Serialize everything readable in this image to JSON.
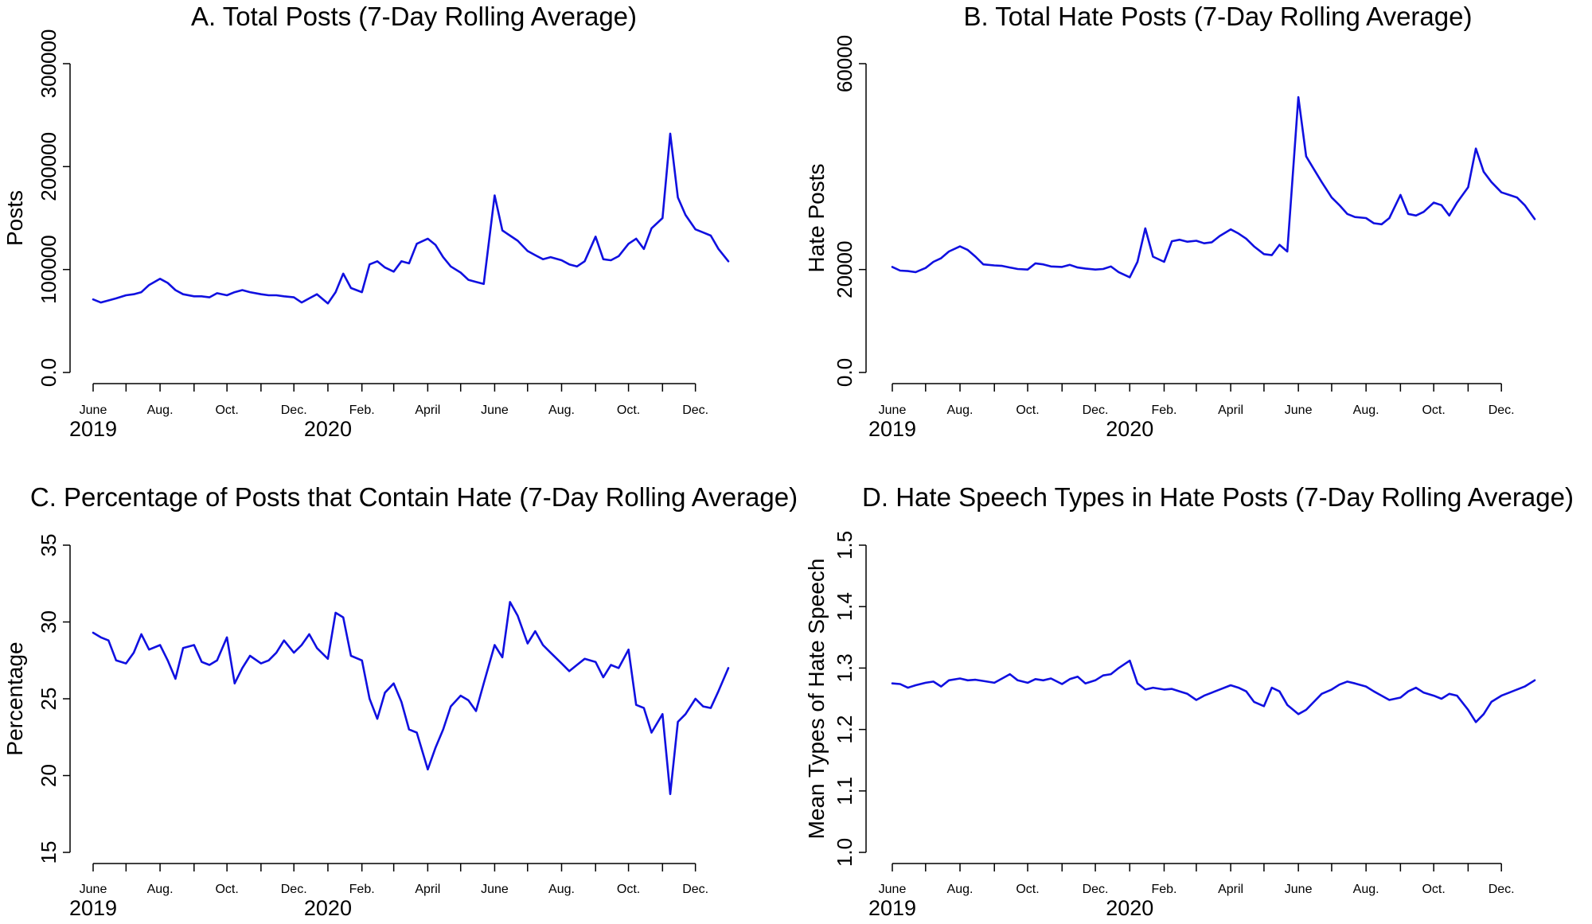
{
  "chart_data": [
    {
      "type": "line",
      "title": "A. Total Posts (7-Day Rolling Average)",
      "xlabel": "",
      "ylabel": "Posts",
      "ylim": [
        0,
        300000
      ],
      "yticks": [
        0,
        100000,
        200000,
        300000
      ],
      "xlim": [
        "2019-06-01",
        "2020-12-31"
      ],
      "x_ticks": [
        {
          "date": "2019-06-01",
          "label": "June"
        },
        {
          "date": "2019-07-01",
          "label": ""
        },
        {
          "date": "2019-08-01",
          "label": "Aug."
        },
        {
          "date": "2019-09-01",
          "label": ""
        },
        {
          "date": "2019-10-01",
          "label": "Oct."
        },
        {
          "date": "2019-11-01",
          "label": ""
        },
        {
          "date": "2019-12-01",
          "label": "Dec."
        },
        {
          "date": "2020-01-01",
          "label": ""
        },
        {
          "date": "2020-02-01",
          "label": "Feb."
        },
        {
          "date": "2020-03-01",
          "label": ""
        },
        {
          "date": "2020-04-01",
          "label": "April"
        },
        {
          "date": "2020-05-01",
          "label": ""
        },
        {
          "date": "2020-06-01",
          "label": "June"
        },
        {
          "date": "2020-07-01",
          "label": ""
        },
        {
          "date": "2020-08-01",
          "label": "Aug."
        },
        {
          "date": "2020-09-01",
          "label": ""
        },
        {
          "date": "2020-10-01",
          "label": "Oct."
        },
        {
          "date": "2020-11-01",
          "label": ""
        },
        {
          "date": "2020-12-01",
          "label": "Dec."
        }
      ],
      "year_labels": [
        {
          "date": "2019-06-01",
          "label": "2019"
        },
        {
          "date": "2020-01-01",
          "label": "2020"
        }
      ],
      "grid": false,
      "legend": "none",
      "color": "#1010e0",
      "x": [
        "2019-06-01",
        "2019-06-08",
        "2019-06-15",
        "2019-06-22",
        "2019-07-01",
        "2019-07-08",
        "2019-07-15",
        "2019-07-22",
        "2019-08-01",
        "2019-08-08",
        "2019-08-15",
        "2019-08-22",
        "2019-09-01",
        "2019-09-08",
        "2019-09-15",
        "2019-09-22",
        "2019-10-01",
        "2019-10-08",
        "2019-10-15",
        "2019-10-22",
        "2019-11-01",
        "2019-11-08",
        "2019-11-15",
        "2019-11-22",
        "2019-12-01",
        "2019-12-08",
        "2019-12-15",
        "2019-12-22",
        "2020-01-01",
        "2020-01-08",
        "2020-01-15",
        "2020-01-22",
        "2020-02-01",
        "2020-02-08",
        "2020-02-15",
        "2020-02-22",
        "2020-03-01",
        "2020-03-08",
        "2020-03-15",
        "2020-03-22",
        "2020-04-01",
        "2020-04-08",
        "2020-04-15",
        "2020-04-22",
        "2020-05-01",
        "2020-05-08",
        "2020-05-15",
        "2020-05-22",
        "2020-06-01",
        "2020-06-08",
        "2020-06-15",
        "2020-06-22",
        "2020-07-01",
        "2020-07-08",
        "2020-07-15",
        "2020-07-22",
        "2020-08-01",
        "2020-08-08",
        "2020-08-15",
        "2020-08-22",
        "2020-09-01",
        "2020-09-08",
        "2020-09-15",
        "2020-09-22",
        "2020-10-01",
        "2020-10-08",
        "2020-10-15",
        "2020-10-22",
        "2020-11-01",
        "2020-11-08",
        "2020-11-15",
        "2020-11-22",
        "2020-12-01",
        "2020-12-08",
        "2020-12-15",
        "2020-12-22",
        "2020-12-31"
      ],
      "values": [
        71000,
        68000,
        70000,
        72000,
        75000,
        76000,
        78000,
        85000,
        91000,
        87000,
        80000,
        76000,
        74000,
        74000,
        73000,
        77000,
        75000,
        78000,
        80000,
        78000,
        76000,
        75000,
        75000,
        74000,
        73000,
        68000,
        72000,
        76000,
        67000,
        78000,
        96000,
        82000,
        78000,
        105000,
        108000,
        102000,
        98000,
        108000,
        106000,
        125000,
        130000,
        124000,
        112000,
        103000,
        97000,
        90000,
        88000,
        86000,
        172000,
        138000,
        133000,
        128000,
        118000,
        114000,
        110000,
        112000,
        109000,
        105000,
        103000,
        108000,
        132000,
        110000,
        109000,
        113000,
        125000,
        130000,
        120000,
        140000,
        150000,
        232000,
        170000,
        153000,
        139000,
        136000,
        133000,
        120000,
        108000
      ]
    },
    {
      "type": "line",
      "title": "B. Total Hate Posts (7-Day Rolling Average)",
      "xlabel": "",
      "ylabel": "Hate Posts",
      "ylim": [
        0,
        60000
      ],
      "yticks": [
        0,
        20000,
        60000
      ],
      "xlim": [
        "2019-06-01",
        "2020-12-31"
      ],
      "x": [
        "2019-06-01",
        "2019-06-08",
        "2019-06-15",
        "2019-06-22",
        "2019-07-01",
        "2019-07-08",
        "2019-07-15",
        "2019-07-22",
        "2019-08-01",
        "2019-08-08",
        "2019-08-15",
        "2019-08-22",
        "2019-09-01",
        "2019-09-08",
        "2019-09-15",
        "2019-09-22",
        "2019-10-01",
        "2019-10-08",
        "2019-10-15",
        "2019-10-22",
        "2019-11-01",
        "2019-11-08",
        "2019-11-15",
        "2019-11-22",
        "2019-12-01",
        "2019-12-08",
        "2019-12-15",
        "2019-12-22",
        "2020-01-01",
        "2020-01-08",
        "2020-01-15",
        "2020-01-22",
        "2020-02-01",
        "2020-02-08",
        "2020-02-15",
        "2020-02-22",
        "2020-03-01",
        "2020-03-08",
        "2020-03-15",
        "2020-03-22",
        "2020-04-01",
        "2020-04-08",
        "2020-04-15",
        "2020-04-22",
        "2020-05-01",
        "2020-05-08",
        "2020-05-15",
        "2020-05-22",
        "2020-06-01",
        "2020-06-08",
        "2020-06-15",
        "2020-06-22",
        "2020-07-01",
        "2020-07-08",
        "2020-07-15",
        "2020-07-22",
        "2020-08-01",
        "2020-08-08",
        "2020-08-15",
        "2020-08-22",
        "2020-09-01",
        "2020-09-08",
        "2020-09-15",
        "2020-09-22",
        "2020-10-01",
        "2020-10-08",
        "2020-10-15",
        "2020-10-22",
        "2020-11-01",
        "2020-11-08",
        "2020-11-15",
        "2020-11-22",
        "2020-12-01",
        "2020-12-08",
        "2020-12-15",
        "2020-12-22",
        "2020-12-31"
      ],
      "values": [
        20500,
        19800,
        19700,
        19500,
        20300,
        21500,
        22200,
        23500,
        24500,
        23800,
        22500,
        21000,
        20800,
        20700,
        20400,
        20100,
        20000,
        21200,
        21000,
        20600,
        20500,
        20900,
        20400,
        20200,
        20000,
        20100,
        20600,
        19500,
        18500,
        21500,
        28000,
        22500,
        21500,
        25500,
        25800,
        25400,
        25600,
        25100,
        25300,
        26500,
        27800,
        27000,
        26000,
        24500,
        23000,
        22800,
        24800,
        23500,
        53500,
        42000,
        39500,
        37000,
        34000,
        32500,
        30800,
        30200,
        30000,
        29000,
        28800,
        30000,
        34500,
        30800,
        30500,
        31200,
        33000,
        32500,
        30500,
        33000,
        36000,
        43500,
        39000,
        37000,
        35000,
        34500,
        34000,
        32500,
        29800
      ]
    },
    {
      "type": "line",
      "title": "C. Percentage of Posts that Contain Hate (7-Day Rolling Average)",
      "xlabel": "",
      "ylabel": "Percentage",
      "ylim": [
        15,
        35
      ],
      "yticks": [
        15,
        20,
        25,
        30,
        35
      ],
      "xlim": [
        "2019-06-01",
        "2020-12-31"
      ],
      "x": [
        "2019-06-01",
        "2019-06-08",
        "2019-06-15",
        "2019-06-22",
        "2019-07-01",
        "2019-07-08",
        "2019-07-15",
        "2019-07-22",
        "2019-08-01",
        "2019-08-08",
        "2019-08-15",
        "2019-08-22",
        "2019-09-01",
        "2019-09-08",
        "2019-09-15",
        "2019-09-22",
        "2019-10-01",
        "2019-10-08",
        "2019-10-15",
        "2019-10-22",
        "2019-11-01",
        "2019-11-08",
        "2019-11-15",
        "2019-11-22",
        "2019-12-01",
        "2019-12-08",
        "2019-12-15",
        "2019-12-22",
        "2020-01-01",
        "2020-01-08",
        "2020-01-15",
        "2020-01-22",
        "2020-02-01",
        "2020-02-08",
        "2020-02-15",
        "2020-02-22",
        "2020-03-01",
        "2020-03-08",
        "2020-03-15",
        "2020-03-22",
        "2020-04-01",
        "2020-04-08",
        "2020-04-15",
        "2020-04-22",
        "2020-05-01",
        "2020-05-08",
        "2020-05-15",
        "2020-05-22",
        "2020-06-01",
        "2020-06-08",
        "2020-06-15",
        "2020-06-22",
        "2020-07-01",
        "2020-07-08",
        "2020-07-15",
        "2020-07-22",
        "2020-08-01",
        "2020-08-08",
        "2020-08-15",
        "2020-08-22",
        "2020-09-01",
        "2020-09-08",
        "2020-09-15",
        "2020-09-22",
        "2020-10-01",
        "2020-10-08",
        "2020-10-15",
        "2020-10-22",
        "2020-11-01",
        "2020-11-08",
        "2020-11-15",
        "2020-11-22",
        "2020-12-01",
        "2020-12-08",
        "2020-12-15",
        "2020-12-22",
        "2020-12-31"
      ],
      "values": [
        29.3,
        29.0,
        28.8,
        27.5,
        27.3,
        28.0,
        29.2,
        28.2,
        28.5,
        27.5,
        26.3,
        28.3,
        28.5,
        27.4,
        27.2,
        27.5,
        29.0,
        26.0,
        27.0,
        27.8,
        27.3,
        27.5,
        28.0,
        28.8,
        28.0,
        28.5,
        29.2,
        28.3,
        27.6,
        30.6,
        30.3,
        27.8,
        27.5,
        25.0,
        23.7,
        25.4,
        26.0,
        24.8,
        23.0,
        22.8,
        20.4,
        21.8,
        23.0,
        24.5,
        25.2,
        24.9,
        24.2,
        26.0,
        28.5,
        27.7,
        31.3,
        30.4,
        28.6,
        29.4,
        28.5,
        28.0,
        27.3,
        26.8,
        27.2,
        27.6,
        27.4,
        26.4,
        27.2,
        27.0,
        28.2,
        24.6,
        24.4,
        22.8,
        24.0,
        18.8,
        23.5,
        24.0,
        25.0,
        24.5,
        24.4,
        25.5,
        27.0
      ]
    },
    {
      "type": "line",
      "title": "D. Hate Speech Types in Hate Posts (7-Day Rolling Average)",
      "xlabel": "",
      "ylabel": "Mean Types of Hate Speech",
      "ylim": [
        1.0,
        1.5
      ],
      "yticks": [
        1.0,
        1.1,
        1.2,
        1.3,
        1.4,
        1.5
      ],
      "xlim": [
        "2019-06-01",
        "2020-12-31"
      ],
      "x": [
        "2019-06-01",
        "2019-06-08",
        "2019-06-15",
        "2019-06-22",
        "2019-07-01",
        "2019-07-08",
        "2019-07-15",
        "2019-07-22",
        "2019-08-01",
        "2019-08-08",
        "2019-08-15",
        "2019-08-22",
        "2019-09-01",
        "2019-09-08",
        "2019-09-15",
        "2019-09-22",
        "2019-10-01",
        "2019-10-08",
        "2019-10-15",
        "2019-10-22",
        "2019-11-01",
        "2019-11-08",
        "2019-11-15",
        "2019-11-22",
        "2019-12-01",
        "2019-12-08",
        "2019-12-15",
        "2019-12-22",
        "2020-01-01",
        "2020-01-08",
        "2020-01-15",
        "2020-01-22",
        "2020-02-01",
        "2020-02-08",
        "2020-02-15",
        "2020-02-22",
        "2020-03-01",
        "2020-03-08",
        "2020-03-15",
        "2020-03-22",
        "2020-04-01",
        "2020-04-08",
        "2020-04-15",
        "2020-04-22",
        "2020-05-01",
        "2020-05-08",
        "2020-05-15",
        "2020-05-22",
        "2020-06-01",
        "2020-06-08",
        "2020-06-15",
        "2020-06-22",
        "2020-07-01",
        "2020-07-08",
        "2020-07-15",
        "2020-07-22",
        "2020-08-01",
        "2020-08-08",
        "2020-08-15",
        "2020-08-22",
        "2020-09-01",
        "2020-09-08",
        "2020-09-15",
        "2020-09-22",
        "2020-10-01",
        "2020-10-08",
        "2020-10-15",
        "2020-10-22",
        "2020-11-01",
        "2020-11-08",
        "2020-11-15",
        "2020-11-22",
        "2020-12-01",
        "2020-12-08",
        "2020-12-15",
        "2020-12-22",
        "2020-12-31"
      ],
      "values": [
        1.275,
        1.274,
        1.268,
        1.272,
        1.276,
        1.278,
        1.27,
        1.28,
        1.283,
        1.28,
        1.281,
        1.279,
        1.276,
        1.283,
        1.29,
        1.28,
        1.276,
        1.282,
        1.28,
        1.283,
        1.274,
        1.282,
        1.286,
        1.275,
        1.28,
        1.288,
        1.29,
        1.3,
        1.312,
        1.275,
        1.265,
        1.268,
        1.265,
        1.266,
        1.262,
        1.258,
        1.248,
        1.255,
        1.26,
        1.265,
        1.272,
        1.268,
        1.262,
        1.245,
        1.238,
        1.268,
        1.262,
        1.24,
        1.225,
        1.232,
        1.245,
        1.258,
        1.265,
        1.273,
        1.278,
        1.275,
        1.27,
        1.262,
        1.255,
        1.248,
        1.252,
        1.262,
        1.268,
        1.26,
        1.255,
        1.25,
        1.258,
        1.255,
        1.232,
        1.212,
        1.225,
        1.245,
        1.255,
        1.26,
        1.265,
        1.27,
        1.28
      ]
    }
  ]
}
